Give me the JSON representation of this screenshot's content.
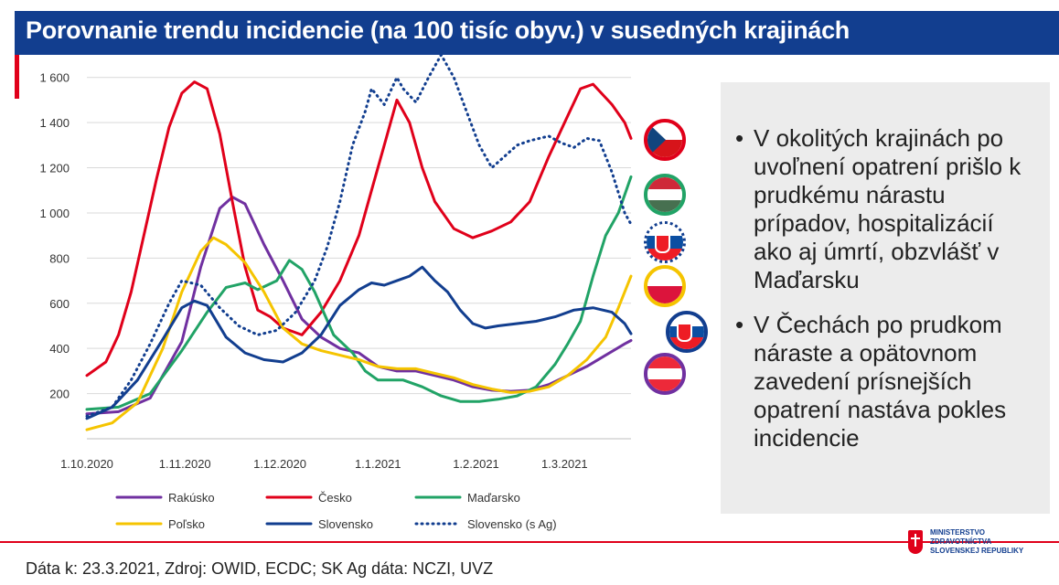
{
  "header": {
    "title": "Porovnanie trendu incidencie (na 100 tisíc obyv.) v susedných krajinách"
  },
  "colors": {
    "brand_blue": "#123e8f",
    "brand_red": "#e0001a"
  },
  "chart_data": {
    "type": "line",
    "ylabel": "",
    "ylim": [
      0,
      1700
    ],
    "yticks": [
      200,
      400,
      600,
      800,
      1000,
      1200,
      1400,
      1600
    ],
    "ytick_labels": [
      "200",
      "400",
      "600",
      "800",
      "1 000",
      "1 200",
      "1 400",
      "1 600"
    ],
    "xlim": [
      0,
      172
    ],
    "xticks": [
      0,
      31,
      61,
      92,
      123,
      151
    ],
    "xtick_labels": [
      "1.10.2020",
      "1.11.2020",
      "1.12.2020",
      "1.1.2021",
      "1.2.2021",
      "1.3.2021"
    ],
    "grid": "horizontal",
    "legend_position": "bottom",
    "series": [
      {
        "name": "Rakúsko",
        "color": "#7030a0",
        "style": "solid",
        "points": [
          [
            0,
            110
          ],
          [
            10,
            120
          ],
          [
            20,
            180
          ],
          [
            30,
            430
          ],
          [
            36,
            760
          ],
          [
            42,
            1020
          ],
          [
            46,
            1070
          ],
          [
            50,
            1040
          ],
          [
            56,
            860
          ],
          [
            62,
            700
          ],
          [
            68,
            530
          ],
          [
            74,
            450
          ],
          [
            80,
            400
          ],
          [
            86,
            380
          ],
          [
            92,
            320
          ],
          [
            98,
            300
          ],
          [
            104,
            300
          ],
          [
            110,
            280
          ],
          [
            116,
            260
          ],
          [
            122,
            230
          ],
          [
            128,
            215
          ],
          [
            134,
            210
          ],
          [
            140,
            215
          ],
          [
            146,
            240
          ],
          [
            152,
            280
          ],
          [
            158,
            320
          ],
          [
            164,
            370
          ],
          [
            170,
            420
          ],
          [
            172,
            435
          ]
        ]
      },
      {
        "name": "Česko",
        "color": "#e0001a",
        "style": "solid",
        "points": [
          [
            0,
            280
          ],
          [
            6,
            340
          ],
          [
            10,
            460
          ],
          [
            14,
            650
          ],
          [
            18,
            900
          ],
          [
            22,
            1150
          ],
          [
            26,
            1380
          ],
          [
            30,
            1530
          ],
          [
            34,
            1580
          ],
          [
            38,
            1550
          ],
          [
            42,
            1350
          ],
          [
            46,
            1050
          ],
          [
            50,
            760
          ],
          [
            54,
            570
          ],
          [
            58,
            540
          ],
          [
            62,
            490
          ],
          [
            68,
            460
          ],
          [
            74,
            560
          ],
          [
            80,
            700
          ],
          [
            86,
            900
          ],
          [
            90,
            1100
          ],
          [
            94,
            1300
          ],
          [
            98,
            1500
          ],
          [
            102,
            1400
          ],
          [
            106,
            1200
          ],
          [
            110,
            1050
          ],
          [
            116,
            930
          ],
          [
            122,
            890
          ],
          [
            128,
            920
          ],
          [
            134,
            960
          ],
          [
            140,
            1050
          ],
          [
            146,
            1250
          ],
          [
            152,
            1430
          ],
          [
            156,
            1550
          ],
          [
            160,
            1570
          ],
          [
            166,
            1480
          ],
          [
            170,
            1400
          ],
          [
            172,
            1330
          ]
        ]
      },
      {
        "name": "Maďarsko",
        "color": "#21a366",
        "style": "solid",
        "points": [
          [
            0,
            130
          ],
          [
            10,
            140
          ],
          [
            20,
            200
          ],
          [
            30,
            390
          ],
          [
            38,
            560
          ],
          [
            44,
            670
          ],
          [
            50,
            690
          ],
          [
            54,
            660
          ],
          [
            60,
            700
          ],
          [
            64,
            790
          ],
          [
            68,
            750
          ],
          [
            72,
            650
          ],
          [
            78,
            460
          ],
          [
            84,
            380
          ],
          [
            88,
            300
          ],
          [
            92,
            260
          ],
          [
            96,
            260
          ],
          [
            100,
            260
          ],
          [
            106,
            230
          ],
          [
            112,
            190
          ],
          [
            118,
            165
          ],
          [
            124,
            165
          ],
          [
            130,
            175
          ],
          [
            136,
            190
          ],
          [
            142,
            230
          ],
          [
            148,
            330
          ],
          [
            152,
            420
          ],
          [
            156,
            520
          ],
          [
            160,
            720
          ],
          [
            164,
            900
          ],
          [
            168,
            1000
          ],
          [
            172,
            1160
          ]
        ]
      },
      {
        "name": "Poľsko",
        "color": "#f5c400",
        "style": "solid",
        "points": [
          [
            0,
            40
          ],
          [
            8,
            70
          ],
          [
            16,
            160
          ],
          [
            24,
            400
          ],
          [
            30,
            650
          ],
          [
            36,
            830
          ],
          [
            40,
            890
          ],
          [
            44,
            860
          ],
          [
            50,
            780
          ],
          [
            56,
            650
          ],
          [
            62,
            490
          ],
          [
            68,
            420
          ],
          [
            74,
            390
          ],
          [
            80,
            370
          ],
          [
            86,
            350
          ],
          [
            92,
            320
          ],
          [
            98,
            310
          ],
          [
            104,
            310
          ],
          [
            110,
            290
          ],
          [
            116,
            270
          ],
          [
            122,
            240
          ],
          [
            128,
            220
          ],
          [
            134,
            205
          ],
          [
            140,
            210
          ],
          [
            146,
            230
          ],
          [
            152,
            280
          ],
          [
            158,
            350
          ],
          [
            164,
            450
          ],
          [
            168,
            580
          ],
          [
            172,
            720
          ]
        ]
      },
      {
        "name": "Slovensko",
        "color": "#123e8f",
        "style": "solid",
        "points": [
          [
            0,
            90
          ],
          [
            8,
            140
          ],
          [
            16,
            260
          ],
          [
            24,
            440
          ],
          [
            30,
            580
          ],
          [
            34,
            610
          ],
          [
            38,
            590
          ],
          [
            44,
            450
          ],
          [
            50,
            380
          ],
          [
            56,
            350
          ],
          [
            62,
            340
          ],
          [
            68,
            380
          ],
          [
            74,
            460
          ],
          [
            80,
            590
          ],
          [
            86,
            660
          ],
          [
            90,
            690
          ],
          [
            94,
            680
          ],
          [
            98,
            700
          ],
          [
            102,
            720
          ],
          [
            106,
            760
          ],
          [
            110,
            700
          ],
          [
            114,
            650
          ],
          [
            118,
            570
          ],
          [
            122,
            510
          ],
          [
            126,
            490
          ],
          [
            130,
            500
          ],
          [
            136,
            510
          ],
          [
            142,
            520
          ],
          [
            148,
            540
          ],
          [
            154,
            570
          ],
          [
            160,
            580
          ],
          [
            166,
            560
          ],
          [
            170,
            510
          ],
          [
            172,
            465
          ]
        ]
      },
      {
        "name": "Slovensko (s Ag)",
        "color": "#123e8f",
        "style": "dotted",
        "points": [
          [
            0,
            100
          ],
          [
            8,
            140
          ],
          [
            14,
            260
          ],
          [
            20,
            420
          ],
          [
            26,
            600
          ],
          [
            30,
            700
          ],
          [
            36,
            680
          ],
          [
            42,
            580
          ],
          [
            48,
            500
          ],
          [
            54,
            460
          ],
          [
            60,
            480
          ],
          [
            66,
            560
          ],
          [
            72,
            700
          ],
          [
            76,
            850
          ],
          [
            80,
            1050
          ],
          [
            84,
            1300
          ],
          [
            88,
            1450
          ],
          [
            90,
            1550
          ],
          [
            94,
            1480
          ],
          [
            98,
            1600
          ],
          [
            100,
            1550
          ],
          [
            104,
            1490
          ],
          [
            108,
            1600
          ],
          [
            112,
            1700
          ],
          [
            116,
            1600
          ],
          [
            120,
            1450
          ],
          [
            124,
            1300
          ],
          [
            128,
            1200
          ],
          [
            132,
            1250
          ],
          [
            136,
            1300
          ],
          [
            140,
            1320
          ],
          [
            146,
            1340
          ],
          [
            150,
            1310
          ],
          [
            154,
            1290
          ],
          [
            158,
            1330
          ],
          [
            162,
            1320
          ],
          [
            166,
            1180
          ],
          [
            170,
            1000
          ],
          [
            172,
            950
          ]
        ]
      }
    ],
    "flags": [
      "Česko",
      "Maďarsko",
      "Slovensko (s Ag)",
      "Poľsko",
      "Slovensko",
      "Rakúsko"
    ]
  },
  "bullets": [
    "V okolitých krajinách po uvoľnení opatrení prišlo k prudkému nárastu prípadov, hospitalizácií ako aj úmrtí, obzvlášť v Maďarsku",
    "V Čechách po prudkom náraste a opätovnom zavedení prísnejších opatrení nastáva pokles incidencie"
  ],
  "bullet_symbol": "•",
  "footer": {
    "source": "Dáta k: 23.3.2021, Zdroj: OWID, ECDC; SK Ag dáta: NCZI, UVZ",
    "ministry_lines": [
      "MINISTERSTVO",
      "ZDRAVOTNÍCTVA",
      "SLOVENSKEJ REPUBLIKY"
    ]
  }
}
